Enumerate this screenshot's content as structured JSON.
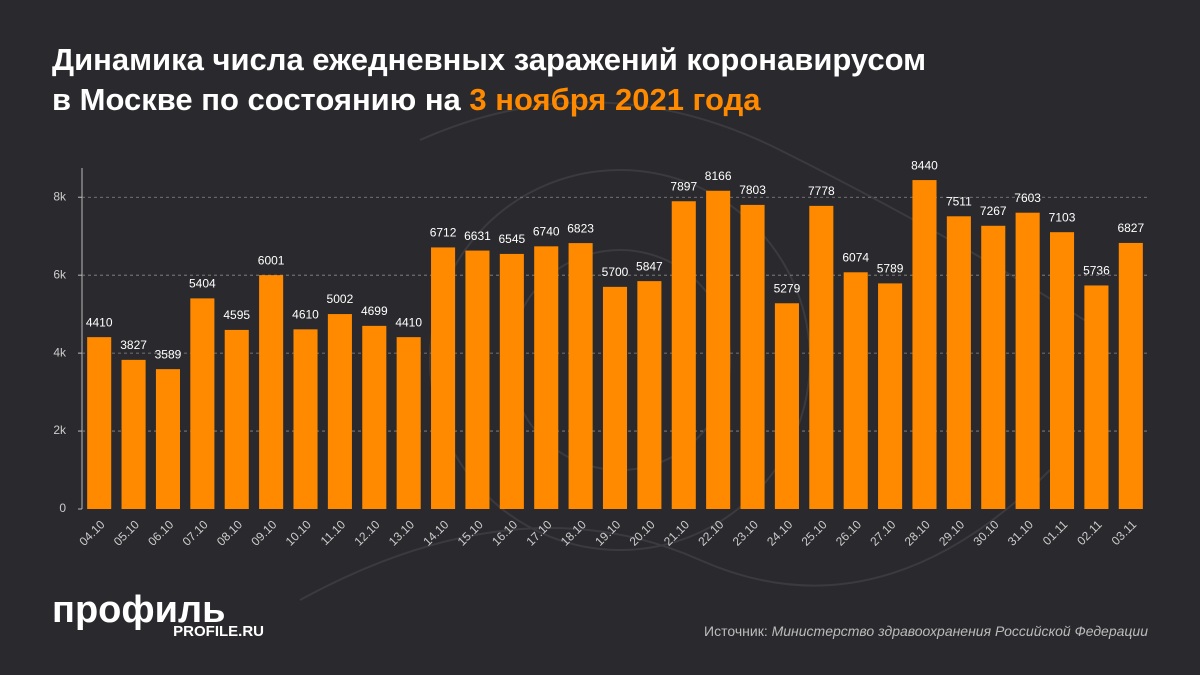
{
  "chart_data": {
    "type": "bar",
    "title": "Динамика числа ежедневных заражений коронавирусом в Москве по состоянию на",
    "title_highlight": "3 ноября 2021 года",
    "categories": [
      "04.10",
      "05.10",
      "06.10",
      "07.10",
      "08.10",
      "09.10",
      "10.10",
      "11.10",
      "12.10",
      "13.10",
      "14.10",
      "15.10",
      "16.10",
      "17.10",
      "18.10",
      "19.10",
      "20.10",
      "21.10",
      "22.10",
      "23.10",
      "24.10",
      "25.10",
      "26.10",
      "27.10",
      "28.10",
      "29.10",
      "30.10",
      "31.10",
      "01.11",
      "02.11",
      "03.11"
    ],
    "values": [
      4410,
      3827,
      3589,
      5404,
      4595,
      6001,
      4610,
      5002,
      4699,
      4410,
      6712,
      6631,
      6545,
      6740,
      6823,
      5700,
      5847,
      7897,
      8166,
      7803,
      5279,
      7778,
      6074,
      5789,
      8440,
      7511,
      7267,
      7603,
      7103,
      5736,
      6827
    ],
    "color": "#ff8a00",
    "ylim": [
      0,
      8750
    ],
    "yticks": [
      0,
      {
        "value": 2000,
        "label": "2k"
      },
      {
        "value": 4000,
        "label": "4k"
      },
      {
        "value": 6000,
        "label": "6k"
      },
      {
        "value": 8000,
        "label": "8k"
      }
    ],
    "grid": true,
    "source_label": "Источник:",
    "source": "Министерство здравоохранения Российской Федерации",
    "logo": "профиль",
    "logo_url": "PROFILE.RU"
  }
}
